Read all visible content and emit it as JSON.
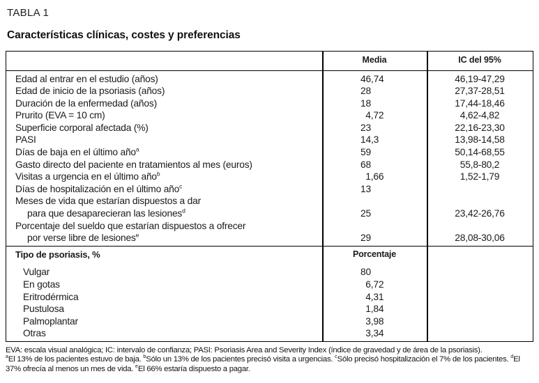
{
  "header": {
    "label": "TABLA 1",
    "title": "Características clínicas, costes y preferencias"
  },
  "table": {
    "columns": {
      "media": "Media",
      "ic": "IC del 95%"
    },
    "rows": [
      {
        "label": "Edad al entrar en el estudio (años)",
        "media": "46,74",
        "ic": "46,19-47,29"
      },
      {
        "label": "Edad de inicio de la psoriasis (años)",
        "media": "28",
        "ic": "27,37-28,51"
      },
      {
        "label": "Duración de la enfermedad (años)",
        "media": "18",
        "ic": "17,44-18,46"
      },
      {
        "label": "Prurito (EVA = 10 cm)",
        "media": "  4,72",
        "ic": "4,62-4,82"
      },
      {
        "label": "Superficie corporal afectada (%)",
        "media": "23",
        "ic": "22,16-23,30"
      },
      {
        "label": "PASI",
        "media": "14,3",
        "ic": "13,98-14,58"
      },
      {
        "label": "Días de baja en el último año",
        "sup": "a",
        "media": "59",
        "ic": "50,14-68,55"
      },
      {
        "label": "Gasto directo del paciente en tratamientos al mes (euros)",
        "media": "68",
        "ic": "55,8-80,2"
      },
      {
        "label": "Visitas a urgencia en el último año",
        "sup": "b",
        "media": "  1,66",
        "ic": "1,52-1,79"
      },
      {
        "label": "Días de hospitalización en el último año",
        "sup": "c",
        "media": "13",
        "ic": ""
      },
      {
        "label": "Meses de vida que estarían dispuestos a dar",
        "label2": "para que desaparecieran las lesiones",
        "sup2": "d",
        "media": "25",
        "ic": "23,42-26,76"
      },
      {
        "label": "Porcentaje del sueldo que estarían dispuestos a ofrecer",
        "label2": "por verse libre de lesiones",
        "sup2": "e",
        "media": "29",
        "ic": "28,08-30,06"
      }
    ],
    "section2": {
      "title": "Tipo de psoriasis, %",
      "value_header": "Porcentaje",
      "rows": [
        {
          "label": "Vulgar",
          "value": "80"
        },
        {
          "label": "En gotas",
          "value": "  6,72"
        },
        {
          "label": "Eritrodérmica",
          "value": "  4,31"
        },
        {
          "label": "Pustulosa",
          "value": "  1,84"
        },
        {
          "label": "Palmoplantar",
          "value": "  3,98"
        },
        {
          "label": "Otras",
          "value": "  3,34"
        }
      ]
    }
  },
  "footnotes": {
    "abbreviations": "EVA: escala visual analógica; IC: intervalo de confianza; PASI: Psoriasis Area and Severity Index (índice de gravedad y de área de la psoriasis).",
    "notes": [
      {
        "sup": "a",
        "text": "El 13% de los pacientes estuvo de baja. "
      },
      {
        "sup": "b",
        "text": "Sólo un 13% de los pacientes precisó visita a urgencias. "
      },
      {
        "sup": "c",
        "text": "Sólo precisó hospitalización el 7% de los pacientes. "
      },
      {
        "sup": "d",
        "text": "El 37% ofrecía al menos un mes de vida. "
      },
      {
        "sup": "e",
        "text": "El 66% estaría dispuesto a pagar."
      }
    ]
  }
}
